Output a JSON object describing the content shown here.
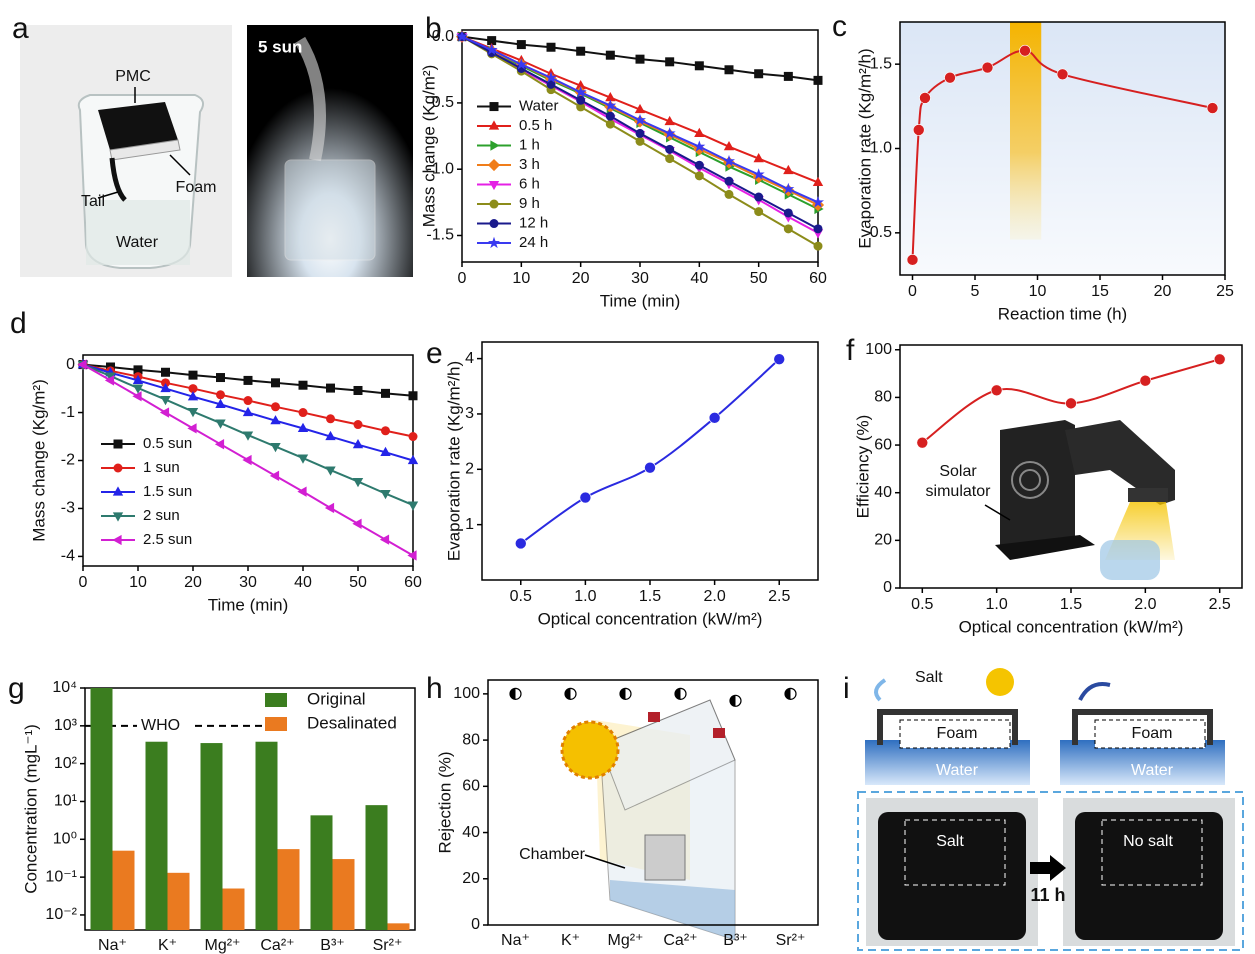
{
  "photos": {
    "a": {
      "label": "a",
      "pmc": "PMC",
      "foam": "Foam",
      "tail": "Tail",
      "water": "Water",
      "light": "5 sun"
    },
    "i": {
      "label": "i",
      "salt": "Salt",
      "foam": "Foam",
      "water": "Water",
      "foam_night": "Foam",
      "water_night": "Water",
      "salt_photo": "Salt",
      "no_salt": "No salt",
      "time": "11 h"
    }
  },
  "chart_data": [
    {
      "type": "line",
      "label": "b",
      "xlabel": "Time (min)",
      "ylabel": "Mass change (Kg/m²)",
      "x": [
        0,
        5,
        10,
        15,
        20,
        25,
        30,
        35,
        40,
        45,
        50,
        55,
        60
      ],
      "xlim": [
        0,
        60
      ],
      "xticks": [
        0,
        10,
        20,
        30,
        40,
        50,
        60
      ],
      "ylim": [
        -1.7,
        0.05
      ],
      "yticks": [
        {
          "value": 0,
          "label": "0.0"
        },
        -0.5,
        {
          "value": -1,
          "label": "-1.0"
        },
        -1.5
      ],
      "legend": "center-left",
      "series": [
        {
          "name": "Water",
          "color": "#111111",
          "marker": "square",
          "values": [
            0,
            -0.03,
            -0.06,
            -0.08,
            -0.11,
            -0.14,
            -0.17,
            -0.19,
            -0.22,
            -0.25,
            -0.28,
            -0.3,
            -0.33
          ]
        },
        {
          "name": "0.5 h",
          "color": "#e0201b",
          "marker": "triangle",
          "values": [
            0,
            -0.09,
            -0.18,
            -0.28,
            -0.37,
            -0.46,
            -0.55,
            -0.64,
            -0.73,
            -0.83,
            -0.92,
            -1.01,
            -1.1
          ]
        },
        {
          "name": "1 h",
          "color": "#2ca02c",
          "marker": "triangle-right",
          "values": [
            0,
            -0.11,
            -0.22,
            -0.33,
            -0.43,
            -0.54,
            -0.65,
            -0.76,
            -0.87,
            -0.98,
            -1.08,
            -1.19,
            -1.3
          ]
        },
        {
          "name": "3 h",
          "color": "#f07d1a",
          "marker": "diamond",
          "values": [
            0,
            -0.11,
            -0.21,
            -0.32,
            -0.42,
            -0.53,
            -0.64,
            -0.74,
            -0.85,
            -0.95,
            -1.06,
            -1.16,
            -1.27
          ]
        },
        {
          "name": "6 h",
          "color": "#e520e5",
          "marker": "triangle-down",
          "values": [
            0,
            -0.12,
            -0.25,
            -0.37,
            -0.49,
            -0.62,
            -0.74,
            -0.86,
            -0.99,
            -1.11,
            -1.23,
            -1.36,
            -1.48
          ]
        },
        {
          "name": "9 h",
          "color": "#8c8c1a",
          "marker": "circle",
          "values": [
            0,
            -0.13,
            -0.26,
            -0.4,
            -0.53,
            -0.66,
            -0.79,
            -0.92,
            -1.05,
            -1.19,
            -1.32,
            -1.45,
            -1.58
          ]
        },
        {
          "name": "12 h",
          "color": "#1a1a8c",
          "marker": "circle",
          "values": [
            0,
            -0.12,
            -0.24,
            -0.36,
            -0.48,
            -0.6,
            -0.73,
            -0.85,
            -0.97,
            -1.09,
            -1.21,
            -1.33,
            -1.45
          ]
        },
        {
          "name": "24 h",
          "color": "#3a3af0",
          "marker": "star",
          "values": [
            0,
            -0.1,
            -0.21,
            -0.31,
            -0.42,
            -0.52,
            -0.63,
            -0.73,
            -0.83,
            -0.94,
            -1.04,
            -1.15,
            -1.25
          ]
        }
      ]
    },
    {
      "type": "line",
      "label": "c",
      "xlabel": "Reaction time (h)",
      "ylabel": "Evaporation rate (Kg/m²/h)",
      "x": [
        0,
        0.5,
        1,
        3,
        6,
        9,
        12,
        24
      ],
      "values": [
        0.34,
        1.11,
        1.3,
        1.42,
        1.48,
        1.58,
        1.44,
        1.24
      ],
      "color": "#d62020",
      "marker": "circle",
      "smooth": true,
      "xlim": [
        -1,
        25
      ],
      "xticks": [
        0,
        5,
        10,
        15,
        20,
        25
      ],
      "ylim": [
        0.25,
        1.75
      ],
      "yticks": [
        0.5,
        {
          "value": 1,
          "label": "1.0"
        },
        1.5
      ],
      "highlight": [
        7.8,
        10.3
      ],
      "background": "#dbe6f6"
    },
    {
      "type": "line",
      "label": "d",
      "xlabel": "Time (min)",
      "ylabel": "Mass change (Kg/m²)",
      "x": [
        0,
        5,
        10,
        15,
        20,
        25,
        30,
        35,
        40,
        45,
        50,
        55,
        60
      ],
      "xlim": [
        0,
        60
      ],
      "xticks": [
        0,
        10,
        20,
        30,
        40,
        50,
        60
      ],
      "ylim": [
        -4.2,
        0.2
      ],
      "yticks": [
        0,
        -1,
        -2,
        -3,
        -4
      ],
      "legend": "lower-left",
      "series": [
        {
          "name": "0.5 sun",
          "color": "#111111",
          "marker": "square",
          "values": [
            0,
            -0.05,
            -0.11,
            -0.16,
            -0.22,
            -0.27,
            -0.33,
            -0.38,
            -0.43,
            -0.49,
            -0.54,
            -0.6,
            -0.65
          ]
        },
        {
          "name": "1 sun",
          "color": "#e0201b",
          "marker": "circle",
          "values": [
            0,
            -0.13,
            -0.25,
            -0.38,
            -0.5,
            -0.63,
            -0.75,
            -0.88,
            -1.0,
            -1.13,
            -1.25,
            -1.38,
            -1.5
          ]
        },
        {
          "name": "1.5 sun",
          "color": "#2424e8",
          "marker": "triangle",
          "values": [
            0,
            -0.17,
            -0.33,
            -0.5,
            -0.67,
            -0.83,
            -1.0,
            -1.17,
            -1.33,
            -1.5,
            -1.67,
            -1.83,
            -2.0
          ]
        },
        {
          "name": "2 sun",
          "color": "#2e7a6e",
          "marker": "triangle-down",
          "values": [
            0,
            -0.24,
            -0.49,
            -0.73,
            -0.98,
            -1.22,
            -1.47,
            -1.71,
            -1.95,
            -2.2,
            -2.44,
            -2.69,
            -2.93
          ]
        },
        {
          "name": "2.5 sun",
          "color": "#d21fd2",
          "marker": "triangle-left",
          "values": [
            0,
            -0.33,
            -0.66,
            -1.0,
            -1.33,
            -1.66,
            -1.99,
            -2.32,
            -2.65,
            -2.99,
            -3.32,
            -3.65,
            -3.98
          ]
        }
      ]
    },
    {
      "type": "line",
      "label": "e",
      "xlabel": "Optical concentration (kW/m²)",
      "ylabel": "Evaporation rate (Kg/m²/h)",
      "x": [
        0.5,
        1,
        1.5,
        2,
        2.5
      ],
      "values": [
        0.66,
        1.49,
        2.03,
        2.93,
        3.99
      ],
      "color": "#2a2ae0",
      "marker": "circle",
      "smooth": true,
      "xlim": [
        0.2,
        2.8
      ],
      "xticks": [
        0.5,
        {
          "value": 1,
          "label": "1.0"
        },
        1.5,
        {
          "value": 2,
          "label": "2.0"
        },
        2.5
      ],
      "ylim": [
        0,
        4.3
      ],
      "yticks": [
        1,
        2,
        3,
        4
      ]
    },
    {
      "type": "line",
      "label": "f",
      "xlabel": "Optical concentration (kW/m²)",
      "ylabel": "Efficiency (%)",
      "x": [
        0.5,
        1,
        1.5,
        2,
        2.5
      ],
      "values": [
        61,
        83,
        77.5,
        87,
        96
      ],
      "color": "#d62020",
      "marker": "circle",
      "smooth": true,
      "xlim": [
        0.35,
        2.65
      ],
      "xticks": [
        0.5,
        {
          "value": 1,
          "label": "1.0"
        },
        1.5,
        {
          "value": 2,
          "label": "2.0"
        },
        2.5
      ],
      "ylim": [
        0,
        102
      ],
      "yticks": [
        0,
        20,
        40,
        60,
        80,
        100
      ],
      "annotation": [
        "Solar",
        "simulator"
      ]
    },
    {
      "type": "bar",
      "label": "g",
      "ylabel": "Concentration (mgL⁻¹)",
      "log_y": true,
      "categories": [
        "Na⁺",
        "K⁺",
        "Mg²⁺",
        "Ca²⁺",
        "B³⁺",
        "Sr²⁺"
      ],
      "series": [
        {
          "name": "Original",
          "color": "#3b7d1f",
          "values": [
            10000,
            380,
            350,
            380,
            4.3,
            8
          ]
        },
        {
          "name": "Desalinated",
          "color": "#ea7a20",
          "values": [
            0.5,
            0.13,
            0.05,
            0.55,
            0.3,
            0.006
          ]
        }
      ],
      "ylim": [
        0.004,
        10000
      ],
      "yticks": [
        {
          "value": 0.01,
          "label": "10⁻²"
        },
        {
          "value": 0.1,
          "label": "10⁻¹"
        },
        {
          "value": 1,
          "label": "10⁰"
        },
        {
          "value": 10,
          "label": "10¹"
        },
        {
          "value": 100,
          "label": "10²"
        },
        {
          "value": 1000,
          "label": "10³"
        },
        {
          "value": 10000,
          "label": "10⁴"
        }
      ],
      "legend": "upper-right",
      "threshold": {
        "value": 1000,
        "label": "WHO"
      }
    },
    {
      "type": "scatter",
      "label": "h",
      "ylabel": "Rejection (%)",
      "categories": [
        "Na⁺",
        "K⁺",
        "Mg²⁺",
        "Ca²⁺",
        "B³⁺",
        "Sr²⁺"
      ],
      "values": [
        100,
        100,
        100,
        100,
        97,
        100
      ],
      "marker": "half-circle",
      "ylim": [
        0,
        106
      ],
      "yticks": [
        0,
        20,
        40,
        60,
        80,
        100
      ],
      "annotation": "Chamber"
    }
  ]
}
